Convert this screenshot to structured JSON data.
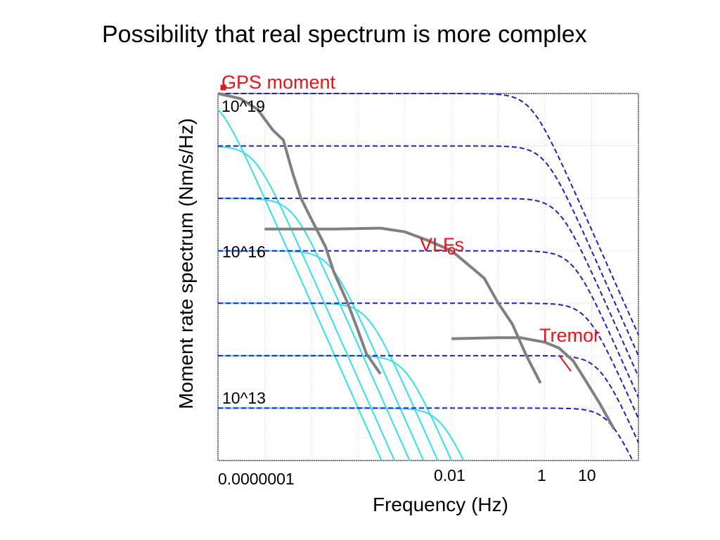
{
  "title": "Possibility that real spectrum is more complex",
  "annotations": {
    "gps": "GPS moment",
    "vlfs": "VLFs",
    "tremor": "Tremor",
    "y_top": "10^19",
    "y_mid": "10^16",
    "y_low": "10^13",
    "x_min": "0.0000001",
    "x_001": "0.01",
    "x_1": "1",
    "x_10": "10"
  },
  "colors": {
    "dashed_model": "#1f1fcc",
    "cyan_model": "#33e0ee",
    "observed": "#808080",
    "highlight": "#e8141b"
  },
  "chart_data": {
    "type": "line",
    "xlabel": "Frequency (Hz)",
    "ylabel": "Moment rate spectrum (Nm/s/Hz)",
    "x_scale": "log",
    "y_scale": "log",
    "xlim": [
      1e-07,
      100
    ],
    "ylim": [
      1000000000000.0,
      1e+19
    ],
    "grid": true,
    "model_levels": [
      1e+19,
      1e+18,
      1e+17,
      1e+16,
      1000000000000000.0,
      100000000000000.0,
      10000000000000.0
    ],
    "dashed_corner_frequencies": [
      0.5,
      1,
      2,
      4,
      8,
      15,
      25
    ],
    "cyan_corner_frequencies": [
      1e-07,
      6e-07,
      4e-06,
      2.5e-05,
      0.00016,
      0.001,
      0.006
    ],
    "observed_series": [
      {
        "name": "GPS moment",
        "x": [
          1e-07,
          3e-07,
          7e-07,
          1.5e-06,
          2.5e-06,
          4e-06,
          6e-06,
          1e-05,
          2e-05,
          3e-05,
          6e-05,
          0.0001,
          0.00015,
          0.0003
        ],
        "y": [
          1e+19,
          8e+18,
          5e+18,
          2e+18,
          1.3e+18,
          3e+17,
          1e+17,
          4e+16,
          1.2e+16,
          4000000000000000.0,
          1000000000000000.0,
          300000000000000.0,
          110000000000000.0,
          45000000000000.0
        ]
      },
      {
        "name": "VLFs",
        "x": [
          1e-06,
          3e-05,
          0.0003,
          0.001,
          0.003,
          0.01,
          0.02,
          0.05,
          0.1,
          0.2,
          0.4,
          0.8
        ],
        "y": [
          2.6e+16,
          2.6e+16,
          2.7e+16,
          2.3e+16,
          1.6e+16,
          1e+16,
          6000000000000000.0,
          3000000000000000.0,
          1000000000000000.0,
          400000000000000.0,
          100000000000000.0,
          30000000000000.0
        ]
      },
      {
        "name": "Tremor",
        "x": [
          0.01,
          0.1,
          0.3,
          1,
          2,
          4,
          8,
          15,
          30
        ],
        "y": [
          210000000000000.0,
          220000000000000.0,
          220000000000000.0,
          180000000000000.0,
          140000000000000.0,
          80000000000000.0,
          30000000000000.0,
          12000000000000.0,
          4000000000000.0
        ]
      }
    ],
    "highlight_points": [
      {
        "name": "GPS moment",
        "x": 1.3e-07,
        "y": 1.3e+19
      },
      {
        "name": "VLFs",
        "x": 0.01,
        "y": 1e+16
      }
    ]
  }
}
